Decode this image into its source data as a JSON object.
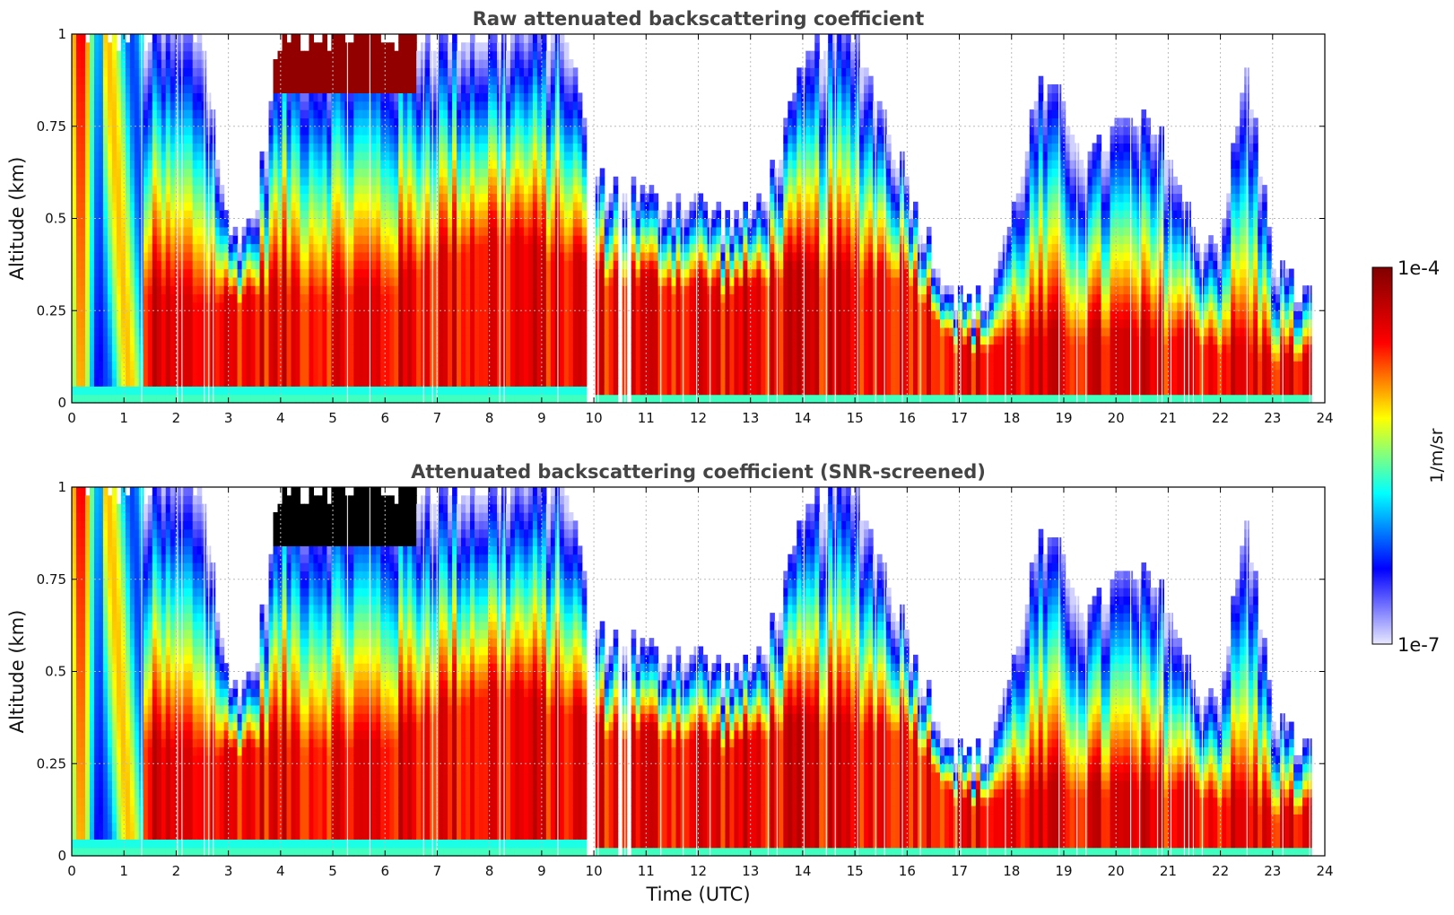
{
  "chart_data": [
    {
      "type": "heatmap",
      "title": "Raw attenuated backscattering coefficient",
      "ylabel": "Altitude (km)",
      "xlabel": "",
      "xlim": [
        0,
        24
      ],
      "ylim": [
        0,
        1
      ],
      "x_ticks": [
        0,
        1,
        2,
        3,
        4,
        5,
        6,
        7,
        8,
        9,
        10,
        11,
        12,
        13,
        14,
        15,
        16,
        17,
        18,
        19,
        20,
        21,
        22,
        23,
        24
      ],
      "y_ticks": [
        0,
        0.25,
        0.5,
        0.75,
        1
      ],
      "y_tick_labels": [
        "0",
        "0.25",
        "0.5",
        "0.75",
        "1"
      ],
      "grid": true,
      "screened": false,
      "profile": {
        "time": [
          0.0,
          0.5,
          1.0,
          1.5,
          2.0,
          2.5,
          3.0,
          3.5,
          4.0,
          4.5,
          5.0,
          5.5,
          6.0,
          6.5,
          7.0,
          7.5,
          8.0,
          8.5,
          9.0,
          9.5,
          10.0,
          10.5,
          11.0,
          11.5,
          12.0,
          12.5,
          13.0,
          13.5,
          14.0,
          14.5,
          15.0,
          15.5,
          16.0,
          16.5,
          17.0,
          17.5,
          18.0,
          18.5,
          19.0,
          19.5,
          20.0,
          20.5,
          21.0,
          21.5,
          22.0,
          22.5,
          23.0,
          23.5
        ],
        "boundary_layer_top_km": [
          0.4,
          0.45,
          0.4,
          0.3,
          0.28,
          0.28,
          0.28,
          0.3,
          0.32,
          0.3,
          0.3,
          0.3,
          0.3,
          0.35,
          0.4,
          0.42,
          0.45,
          0.45,
          0.4,
          0.4,
          0.35,
          0.33,
          0.33,
          0.32,
          0.32,
          0.3,
          0.32,
          0.35,
          0.35,
          0.35,
          0.35,
          0.35,
          0.35,
          0.25,
          0.15,
          0.15,
          0.17,
          0.18,
          0.18,
          0.18,
          0.18,
          0.18,
          0.18,
          0.18,
          0.15,
          0.15,
          0.12,
          0.12
        ],
        "signal_top_km": [
          1.0,
          1.0,
          1.0,
          1.0,
          1.0,
          1.0,
          0.45,
          0.5,
          1.0,
          1.0,
          1.0,
          1.0,
          1.0,
          1.0,
          1.0,
          1.0,
          1.0,
          1.0,
          1.0,
          1.0,
          0.6,
          0.6,
          0.55,
          0.55,
          0.55,
          0.5,
          0.5,
          0.65,
          0.9,
          1.0,
          1.0,
          0.8,
          0.6,
          0.4,
          0.28,
          0.27,
          0.5,
          0.85,
          0.8,
          0.65,
          0.75,
          0.75,
          0.7,
          0.45,
          0.45,
          0.9,
          0.4,
          0.3
        ]
      }
    },
    {
      "type": "heatmap",
      "title": "Attenuated backscattering coefficient (SNR-screened)",
      "ylabel": "Altitude (km)",
      "xlabel": "Time (UTC)",
      "xlim": [
        0,
        24
      ],
      "ylim": [
        0,
        1
      ],
      "x_ticks": [
        0,
        1,
        2,
        3,
        4,
        5,
        6,
        7,
        8,
        9,
        10,
        11,
        12,
        13,
        14,
        15,
        16,
        17,
        18,
        19,
        20,
        21,
        22,
        23,
        24
      ],
      "y_ticks": [
        0,
        0.25,
        0.5,
        0.75,
        1
      ],
      "y_tick_labels": [
        "0",
        "0.25",
        "0.5",
        "0.75",
        "1"
      ],
      "grid": true,
      "screened": true
    }
  ],
  "colorbar": {
    "label": "1/m/sr",
    "max_label": "1e-4",
    "min_label": "1e-7",
    "colormap": "jet",
    "colors": [
      "#e8e8ff",
      "#0000ff",
      "#00ffff",
      "#ffff00",
      "#ff0000",
      "#800000"
    ]
  },
  "no_data_color": "#ffffff",
  "saturated_color": "#000000"
}
